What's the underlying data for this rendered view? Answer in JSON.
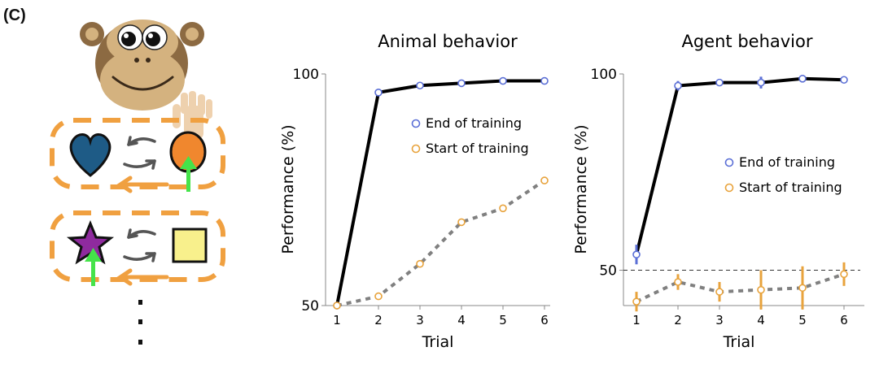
{
  "panel_label": "(C)",
  "colors": {
    "end_of_training": "#5b6fd6",
    "start_of_training": "#e8a33c",
    "end_line": "#000000",
    "start_line": "#808080",
    "heart": "#1e5b86",
    "orange_circle": "#f0872e",
    "star": "#8f2a9e",
    "square": "#f8f08c",
    "arrow_green": "#45e34a",
    "dash_orange": "#f0a040"
  },
  "icons": [
    "monkey-face",
    "hand",
    "heart",
    "circle",
    "star",
    "square",
    "swap-arrows",
    "up-arrow"
  ],
  "chart_data": [
    {
      "type": "line",
      "title": "Animal behavior",
      "xlabel": "Trial",
      "ylabel": "Performance (%)",
      "x": [
        1,
        2,
        3,
        4,
        5,
        6
      ],
      "ylim": [
        50,
        100
      ],
      "yticks": [
        50,
        100
      ],
      "series": [
        {
          "name": "End of training",
          "values": [
            50,
            96,
            97.5,
            98,
            98.5,
            98.5
          ]
        },
        {
          "name": "Start of training",
          "values": [
            50,
            52,
            59,
            68,
            71,
            77
          ]
        }
      ],
      "legend": "upper right",
      "grid": false
    },
    {
      "type": "line",
      "title": "Agent behavior",
      "xlabel": "Trial",
      "ylabel": "Performance (%)",
      "x": [
        1,
        2,
        3,
        4,
        5,
        6
      ],
      "ylim": [
        41,
        100
      ],
      "yticks": [
        50,
        100
      ],
      "reference_line": 50,
      "series": [
        {
          "name": "End of training",
          "values": [
            54,
            97,
            97.8,
            97.8,
            98.8,
            98.5
          ],
          "error": [
            2.5,
            1.2,
            0.8,
            1.5,
            0.8,
            0.6
          ]
        },
        {
          "name": "Start of training",
          "values": [
            42,
            47,
            44.5,
            45,
            45.5,
            49
          ],
          "error": [
            2.5,
            2,
            2.5,
            5,
            5.5,
            3
          ]
        }
      ],
      "legend": "center right",
      "grid": false
    }
  ]
}
